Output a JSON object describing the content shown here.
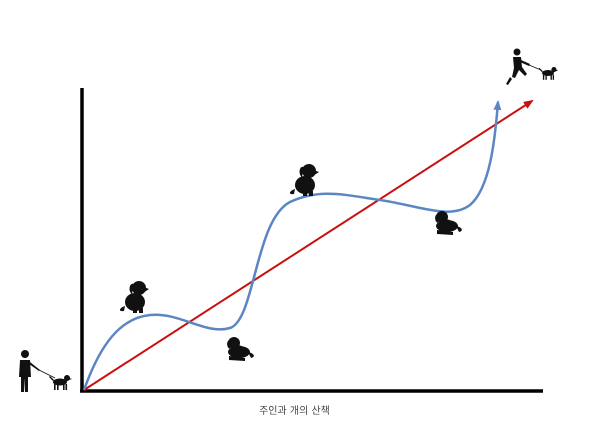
{
  "figure": {
    "caption": "주인과 개의 산책"
  },
  "colors": {
    "axes": "#000000",
    "owner_path": "#c81010",
    "dog_path": "#5b86c2",
    "silhouette": "#111111",
    "caption_text": "#444444",
    "background": "#ffffff"
  },
  "icons": {
    "start_walker": "person-walking-dog-icon",
    "end_walker": "person-running-with-dog-icon",
    "dog_pose_sitting": "dog-sitting-icon",
    "dog_pose_lying": "dog-lying-icon"
  }
}
